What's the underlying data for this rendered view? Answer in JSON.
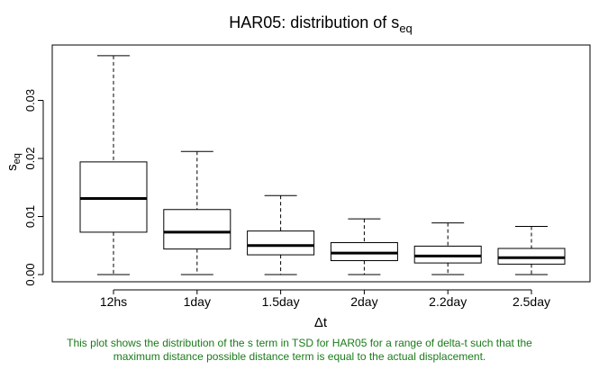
{
  "chart_data": {
    "type": "box",
    "title": "HAR05: distribution of s",
    "title_subscript": "eq",
    "xlabel": "Δt",
    "ylabel": "s",
    "ylabel_subscript": "eq",
    "ylim": [
      -0.002,
      0.039
    ],
    "yticks": [
      0.0,
      0.01,
      0.02,
      0.03
    ],
    "ytick_labels": [
      "0.00",
      "0.01",
      "0.02",
      "0.03"
    ],
    "categories": [
      "12hs",
      "1day",
      "1.5day",
      "2day",
      "2.2day",
      "2.5day"
    ],
    "boxes": [
      {
        "min": 0.0,
        "q1": 0.0073,
        "median": 0.0131,
        "q3": 0.0194,
        "max": 0.0377
      },
      {
        "min": 0.0,
        "q1": 0.0044,
        "median": 0.0073,
        "q3": 0.0112,
        "max": 0.0212
      },
      {
        "min": 0.0,
        "q1": 0.0034,
        "median": 0.005,
        "q3": 0.0075,
        "max": 0.0136
      },
      {
        "min": 0.0,
        "q1": 0.0024,
        "median": 0.0037,
        "q3": 0.0055,
        "max": 0.0096
      },
      {
        "min": 0.0,
        "q1": 0.002,
        "median": 0.0032,
        "q3": 0.0049,
        "max": 0.0089
      },
      {
        "min": 0.0,
        "q1": 0.0018,
        "median": 0.0029,
        "q3": 0.0045,
        "max": 0.0083
      }
    ],
    "grid": false,
    "legend": "none"
  },
  "caption_lines": [
    "This plot shows the distribution of the s term in TSD for HAR05 for a range of delta-t such that the",
    "maximum distance possible distance term is equal to the actual displacement."
  ],
  "colors": {
    "axis": "#000000",
    "box_fill": "#ffffff",
    "caption": "#1a7a1a"
  }
}
